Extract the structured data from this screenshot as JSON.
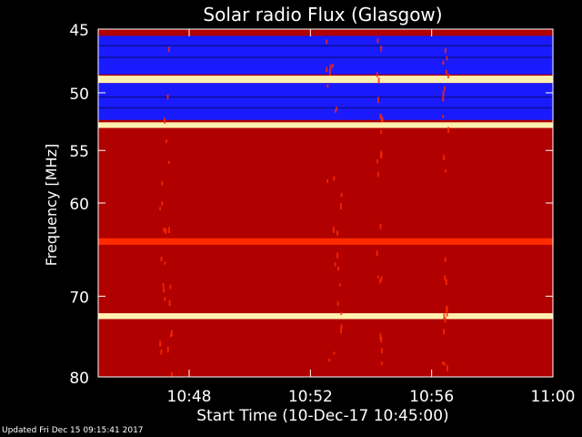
{
  "chart_data": {
    "type": "heatmap",
    "title": "Solar radio Flux (Glasgow)",
    "xlabel": "Start Time (10-Dec-17 10:45:00)",
    "ylabel": "Frequency [MHz]",
    "x_ticks": [
      "10:48",
      "10:52",
      "10:56",
      "11:00"
    ],
    "y_ticks": [
      "45",
      "50",
      "55",
      "60",
      "70",
      "80"
    ],
    "x_range": [
      "10:45",
      "11:00"
    ],
    "y_range_mhz": [
      45,
      80
    ],
    "y_scale": "log",
    "bands": [
      {
        "from_mhz": 45.0,
        "to_mhz": 45.5,
        "level": "medium"
      },
      {
        "from_mhz": 45.5,
        "to_mhz": 48.5,
        "level": "low"
      },
      {
        "from_mhz": 48.6,
        "to_mhz": 49.2,
        "level": "very-high"
      },
      {
        "from_mhz": 49.2,
        "to_mhz": 52.3,
        "level": "low"
      },
      {
        "from_mhz": 52.5,
        "to_mhz": 53.0,
        "level": "very-high"
      },
      {
        "from_mhz": 53.0,
        "to_mhz": 80.0,
        "level": "medium"
      },
      {
        "from_mhz": 63.6,
        "to_mhz": 64.3,
        "level": "high"
      },
      {
        "from_mhz": 72.0,
        "to_mhz": 72.7,
        "level": "very-high"
      }
    ],
    "bursts": [
      {
        "time": "10:47:00",
        "duration_min": 0.4
      },
      {
        "time": "10:52:30",
        "duration_min": 0.5
      },
      {
        "time": "10:54:10",
        "duration_min": 0.2
      },
      {
        "time": "10:56:20",
        "duration_min": 0.2
      }
    ],
    "colors": {
      "background": "#000000",
      "very_low": "#0a0a6a",
      "low": "#1a1aff",
      "medium": "#b00000",
      "high": "#ff2a00",
      "very_high": "#fff0b0"
    }
  },
  "footer": {
    "updated": "Updated Fri Dec 15 09:15:41 2017"
  }
}
